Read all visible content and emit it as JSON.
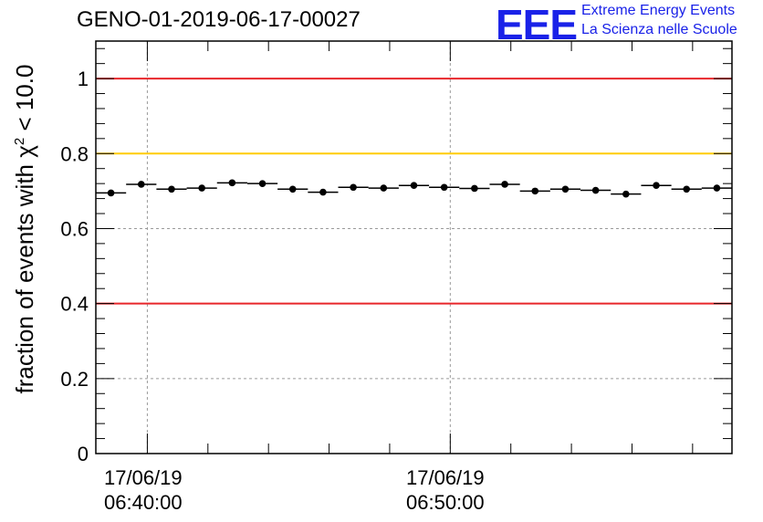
{
  "chart_data": {
    "type": "scatter",
    "title": "GENO-01-2019-06-17-00027",
    "ylabel_main": "fraction of events with ",
    "ylabel_chi": "χ",
    "ylabel_sup": "2",
    "ylabel_tail": " < 10.0",
    "ylim": [
      0,
      1.1
    ],
    "yticks": [
      0,
      0.2,
      0.4,
      0.6,
      0.8,
      1
    ],
    "ytick_labels": [
      "0",
      "0.2",
      "0.4",
      "0.6",
      "0.8",
      "1"
    ],
    "xlim_minutes": [
      -1.7,
      19.3
    ],
    "xtick_major": [
      0,
      10
    ],
    "xtick_labels": [
      {
        "date": "17/06/19",
        "time": "06:40:00"
      },
      {
        "date": "17/06/19",
        "time": "06:50:00"
      }
    ],
    "grid": true,
    "reference_lines": [
      {
        "y": 1.0,
        "color": "#e8262a"
      },
      {
        "y": 0.8,
        "color": "#ffcc00"
      },
      {
        "y": 0.4,
        "color": "#e8262a"
      }
    ],
    "bin_width_minutes": 1.0,
    "x": [
      -1.2,
      -0.2,
      0.8,
      1.8,
      2.8,
      3.8,
      4.8,
      5.8,
      6.8,
      7.8,
      8.8,
      9.8,
      10.8,
      11.8,
      12.8,
      13.8,
      14.8,
      15.8,
      16.8,
      17.8,
      18.8
    ],
    "values": [
      0.695,
      0.718,
      0.705,
      0.708,
      0.722,
      0.72,
      0.705,
      0.697,
      0.71,
      0.708,
      0.715,
      0.71,
      0.707,
      0.718,
      0.7,
      0.705,
      0.702,
      0.692,
      0.715,
      0.705,
      0.708
    ]
  },
  "logo": {
    "mark": "EEE",
    "line1": "Extreme Energy Events",
    "line2": "La Scienza nelle Scuole"
  }
}
